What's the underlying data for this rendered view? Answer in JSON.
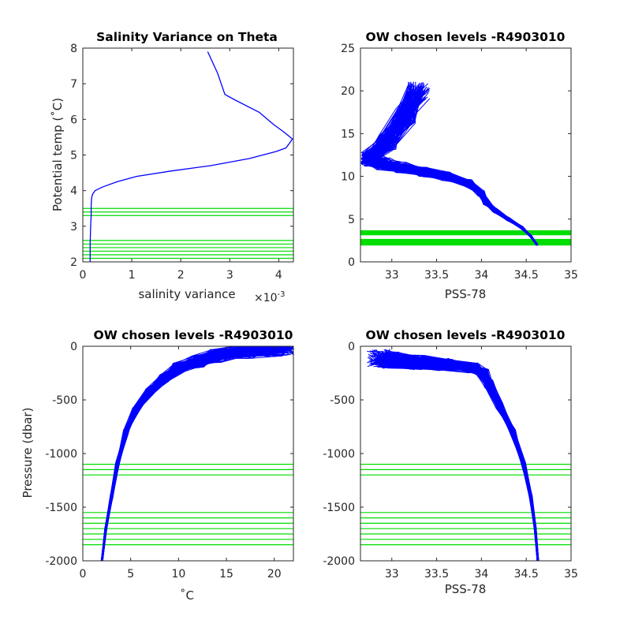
{
  "figure": {
    "background": "#ffffff"
  },
  "chart_data": [
    {
      "id": "salvar",
      "type": "line",
      "title": "Salinity Variance on Theta",
      "xlabel": "salinity variance",
      "x_exponent": "×10",
      "x_exponent_power": "-3",
      "ylabel": "Potential temp (˚C)",
      "xlim": [
        0,
        4.3
      ],
      "ylim": [
        2,
        8
      ],
      "xticks": [
        "0",
        "1",
        "2",
        "3",
        "4"
      ],
      "yticks": [
        "2",
        "3",
        "4",
        "5",
        "6",
        "7",
        "8"
      ],
      "series": [
        {
          "color": "#0000ff",
          "x": [
            0.15,
            0.15,
            0.16,
            0.17,
            0.17,
            0.18,
            0.2,
            0.25,
            0.4,
            0.7,
            1.1,
            1.8,
            2.6,
            3.4,
            3.95,
            4.15,
            4.28,
            4.1,
            3.9,
            3.6,
            3.1,
            2.9,
            2.75,
            2.55
          ],
          "y": [
            2.0,
            2.5,
            3.0,
            3.3,
            3.6,
            3.8,
            3.9,
            4.0,
            4.1,
            4.25,
            4.4,
            4.55,
            4.7,
            4.9,
            5.1,
            5.2,
            5.45,
            5.65,
            5.85,
            6.2,
            6.55,
            6.7,
            7.3,
            7.9
          ]
        }
      ],
      "hlines": {
        "color": "#00dd00",
        "values": [
          2.1,
          2.2,
          2.3,
          2.4,
          2.5,
          2.6,
          3.3,
          3.4,
          3.5
        ]
      }
    },
    {
      "id": "ts",
      "type": "line",
      "title": "OW chosen levels -R4903010",
      "xlabel": "PSS-78",
      "ylabel": "",
      "xlim": [
        32.65,
        35
      ],
      "ylim": [
        0,
        25
      ],
      "xticks": [
        "33",
        "33.5",
        "34",
        "34.5",
        "35"
      ],
      "yticks": [
        "0",
        "5",
        "10",
        "15",
        "20",
        "25"
      ],
      "profile_count": 120,
      "series": [
        {
          "color": "#0000ff",
          "x": [
            34.62,
            34.55,
            34.45,
            34.3,
            34.15,
            34.05,
            34.0,
            33.85,
            33.6,
            33.35,
            33.1,
            32.9,
            32.75,
            32.95,
            33.15,
            33.3
          ],
          "y": [
            2.0,
            3.0,
            4.0,
            5.0,
            6.0,
            7.0,
            8.0,
            9.2,
            10.0,
            10.5,
            11.0,
            11.5,
            12.0,
            14.0,
            17.0,
            20.0
          ]
        }
      ],
      "hlines": {
        "color": "#00dd00",
        "values": [
          2.1,
          2.3,
          2.5,
          3.3,
          3.5
        ]
      }
    },
    {
      "id": "tp",
      "type": "line",
      "title": "OW chosen levels -R4903010",
      "xlabel": "˚C",
      "ylabel": "Pressure (dbar)",
      "xlim": [
        0,
        22
      ],
      "ylim": [
        -2000,
        0
      ],
      "xticks": [
        "0",
        "5",
        "10",
        "15",
        "20"
      ],
      "yticks": [
        "-2000",
        "-1500",
        "-1000",
        "-500",
        "0"
      ],
      "profile_count": 120,
      "series": [
        {
          "color": "#0000ff",
          "x": [
            2.0,
            2.4,
            3.0,
            3.6,
            4.5,
            5.5,
            7.0,
            8.5,
            10.0,
            12.0,
            14.0,
            17.0,
            20.0,
            21.5
          ],
          "y": [
            -2000,
            -1700,
            -1400,
            -1100,
            -800,
            -600,
            -420,
            -300,
            -200,
            -140,
            -90,
            -50,
            -20,
            0
          ]
        }
      ],
      "hlines": {
        "color": "#00dd00",
        "values": [
          -1100,
          -1150,
          -1200,
          -1550,
          -1600,
          -1650,
          -1700,
          -1750,
          -1800,
          -1850
        ]
      }
    },
    {
      "id": "sp",
      "type": "line",
      "title": "OW chosen levels -R4903010",
      "xlabel": "PSS-78",
      "ylabel": "",
      "xlim": [
        32.65,
        35
      ],
      "ylim": [
        -2000,
        0
      ],
      "xticks": [
        "33",
        "33.5",
        "34",
        "34.5",
        "35"
      ],
      "yticks": [
        "-2000",
        "-1500",
        "-1000",
        "-500",
        "0"
      ],
      "profile_count": 120,
      "series": [
        {
          "color": "#0000ff",
          "x": [
            34.63,
            34.6,
            34.55,
            34.47,
            34.35,
            34.2,
            34.08,
            34.02,
            33.9,
            33.6,
            33.3,
            33.0,
            32.85
          ],
          "y": [
            -2000,
            -1700,
            -1400,
            -1100,
            -800,
            -550,
            -350,
            -250,
            -200,
            -170,
            -150,
            -130,
            -110
          ]
        }
      ],
      "hlines": {
        "color": "#00dd00",
        "values": [
          -1100,
          -1150,
          -1200,
          -1550,
          -1600,
          -1650,
          -1700,
          -1750,
          -1800,
          -1850
        ]
      }
    }
  ]
}
